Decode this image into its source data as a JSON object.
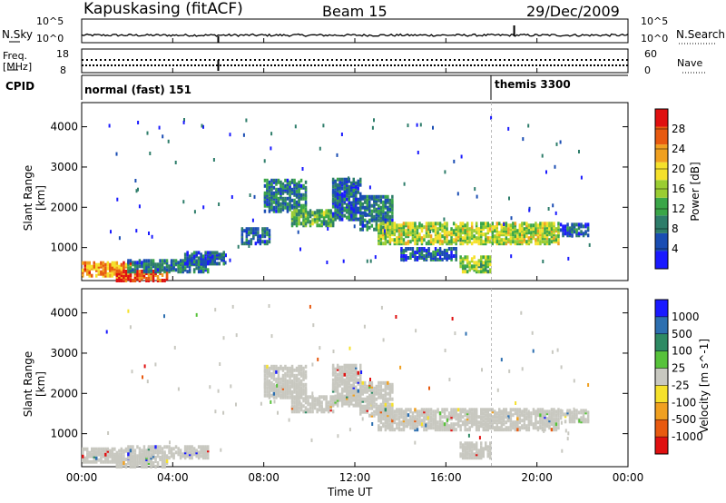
{
  "header": {
    "station": "Kapuskasing (fitACF)",
    "beam": "Beam 15",
    "date": "29/Dec/2009"
  },
  "strip_labels": {
    "nsky": "N.Sky",
    "nsky_ticks": [
      "10^5",
      "10^0"
    ],
    "nsearch": "N.Search",
    "nsearch_ticks": [
      "10^5",
      "10^0"
    ],
    "freq": "Freq.",
    "freq_unit": "[MHz]",
    "freq_ticks": [
      "18",
      "8"
    ],
    "nave": "Nave",
    "nave_ticks": [
      "60",
      "0"
    ],
    "cpid": "CPID"
  },
  "cpid_segments": [
    {
      "label": "normal (fast) 151",
      "start_hour": 0
    },
    {
      "label": "themis 3300",
      "start_hour": 18
    }
  ],
  "colors": {
    "power": [
      "#1a1aff",
      "#1a4db3",
      "#2e7d6a",
      "#3aa648",
      "#9acd32",
      "#f5e12b",
      "#f0a020",
      "#e85a10",
      "#e01010"
    ],
    "velocity": [
      "#1a1aff",
      "#2d6fb0",
      "#2e8a63",
      "#57c23a",
      "#c8c8c0",
      "#f5e12b",
      "#f0a020",
      "#e85a10",
      "#e01010"
    ],
    "ground_scatter": "#c8c8c0"
  },
  "chart_data": [
    {
      "type": "heatmap",
      "title": "Power",
      "ylabel": "Slant Range [km]",
      "xlabel": "Time UT",
      "xlim_hours": [
        0,
        24
      ],
      "ylim": [
        180,
        4600
      ],
      "y_ticks": [
        1000,
        2000,
        3000,
        4000
      ],
      "x_ticks": [
        "00:00",
        "04:00",
        "08:00",
        "12:00",
        "16:00",
        "20:00",
        "00:00"
      ],
      "colorbar": {
        "label": "Power [dB]",
        "ticks": [
          "4",
          "8",
          "12",
          "16",
          "20",
          "24",
          "28"
        ],
        "range": [
          0,
          30
        ]
      },
      "bands": [
        {
          "t0": 0.0,
          "t1": 2.2,
          "r0": 300,
          "r1": 650,
          "value": 22
        },
        {
          "t0": 1.5,
          "t1": 3.8,
          "r0": 180,
          "r1": 450,
          "value": 26
        },
        {
          "t0": 2.0,
          "t1": 5.5,
          "r0": 400,
          "r1": 700,
          "value": 8
        },
        {
          "t0": 4.5,
          "t1": 6.2,
          "r0": 600,
          "r1": 900,
          "value": 6
        },
        {
          "t0": 7.0,
          "t1": 8.2,
          "r0": 1100,
          "r1": 1500,
          "value": 6
        },
        {
          "t0": 8.0,
          "t1": 9.8,
          "r0": 1900,
          "r1": 2700,
          "value": 8
        },
        {
          "t0": 9.2,
          "t1": 11.0,
          "r0": 1550,
          "r1": 1950,
          "value": 12
        },
        {
          "t0": 11.0,
          "t1": 12.2,
          "r0": 1700,
          "r1": 2700,
          "value": 6
        },
        {
          "t0": 12.2,
          "t1": 13.6,
          "r0": 1450,
          "r1": 2300,
          "value": 8
        },
        {
          "t0": 13.0,
          "t1": 21.0,
          "r0": 1100,
          "r1": 1600,
          "value": 16
        },
        {
          "t0": 16.6,
          "t1": 18.0,
          "r0": 400,
          "r1": 800,
          "value": 14
        },
        {
          "t0": 14.0,
          "t1": 16.5,
          "r0": 700,
          "r1": 1000,
          "value": 6
        },
        {
          "t0": 21.0,
          "t1": 22.3,
          "r0": 1300,
          "r1": 1600,
          "value": 6
        }
      ]
    },
    {
      "type": "heatmap",
      "title": "Velocity",
      "ylabel": "Slant Range [km]",
      "xlabel": "Time UT",
      "xlim_hours": [
        0,
        24
      ],
      "ylim": [
        180,
        4600
      ],
      "y_ticks": [
        1000,
        2000,
        3000,
        4000
      ],
      "x_ticks": [
        "00:00",
        "04:00",
        "08:00",
        "12:00",
        "16:00",
        "20:00",
        "00:00"
      ],
      "colorbar": {
        "label": "Velocity [m s^-1]",
        "ticks": [
          "1000",
          "500",
          "100",
          "25",
          "-25",
          "-100",
          "-500",
          "-1000"
        ]
      },
      "bands": [
        {
          "t0": 0.0,
          "t1": 2.2,
          "r0": 300,
          "r1": 650,
          "value": 0
        },
        {
          "t0": 1.5,
          "t1": 3.8,
          "r0": 180,
          "r1": 450,
          "value": 0
        },
        {
          "t0": 2.0,
          "t1": 5.5,
          "r0": 400,
          "r1": 700,
          "value": 0
        },
        {
          "t0": 8.0,
          "t1": 9.8,
          "r0": 1900,
          "r1": 2700,
          "value": 0
        },
        {
          "t0": 9.2,
          "t1": 11.0,
          "r0": 1550,
          "r1": 1950,
          "value": 0
        },
        {
          "t0": 11.0,
          "t1": 12.2,
          "r0": 1700,
          "r1": 2700,
          "value": 0
        },
        {
          "t0": 12.2,
          "t1": 13.6,
          "r0": 1450,
          "r1": 2300,
          "value": 0
        },
        {
          "t0": 13.0,
          "t1": 21.0,
          "r0": 1100,
          "r1": 1600,
          "value": 0
        },
        {
          "t0": 16.6,
          "t1": 18.0,
          "r0": 400,
          "r1": 800,
          "value": 0
        },
        {
          "t0": 21.0,
          "t1": 22.3,
          "r0": 1300,
          "r1": 1600,
          "value": 0
        }
      ]
    }
  ]
}
